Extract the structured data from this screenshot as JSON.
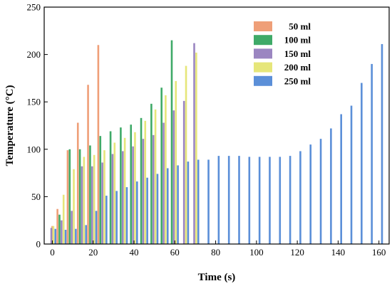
{
  "chart_data": {
    "type": "bar",
    "xlabel": "Time (s)",
    "ylabel": "Temperature (°C)",
    "xlim": [
      -4,
      165
    ],
    "ylim": [
      0,
      250
    ],
    "xticks": [
      0,
      20,
      40,
      60,
      80,
      100,
      120,
      140,
      160
    ],
    "yticks": [
      0,
      50,
      100,
      150,
      200,
      250
    ],
    "grid": false,
    "legend_position": "top-center",
    "series": [
      {
        "name": "50 ml",
        "color": "#ef9f78",
        "x": [
          0,
          2.5,
          7.5,
          12.5,
          17.5,
          22.5
        ],
        "values": [
          19,
          37,
          99,
          128,
          168,
          210
        ]
      },
      {
        "name": "100 ml",
        "color": "#3faa68",
        "x": [
          3.5,
          8.5,
          13.5,
          18.5,
          23.5,
          28.5,
          33.5,
          38.5,
          43.5,
          48.5,
          53.5,
          58.5
        ],
        "values": [
          31,
          100,
          100,
          104,
          114,
          119,
          123,
          126,
          133,
          148,
          165,
          215
        ]
      },
      {
        "name": "150 ml",
        "color": "#9b86c1",
        "x": [
          -0.5,
          4.5,
          9.5,
          14.5,
          19.5,
          24.5,
          29.5,
          34.5,
          39.5,
          44.5,
          49.5,
          54.5,
          59.5,
          64.5,
          69.5
        ],
        "values": [
          17,
          25,
          35,
          82,
          82,
          86,
          95,
          98,
          103,
          111,
          115,
          128,
          141,
          151,
          212
        ]
      },
      {
        "name": "200 ml",
        "color": "#e6e67a",
        "x": [
          0.5,
          5.5,
          10.5,
          15.5,
          20.5,
          25.5,
          30.5,
          35.5,
          40.5,
          45.5,
          50.5,
          55.5,
          60.5,
          65.5,
          70.5
        ],
        "values": [
          19,
          52,
          79,
          92,
          94,
          99,
          107,
          112,
          118,
          130,
          142,
          157,
          172,
          188,
          202
        ]
      },
      {
        "name": "250 ml",
        "color": "#5b8fd8",
        "x": [
          1.5,
          6.5,
          11.5,
          16.5,
          21.5,
          26.5,
          31.5,
          36.5,
          41.5,
          46.5,
          51.5,
          56.5,
          61.5,
          66.5,
          71.5,
          76.5,
          81.5,
          86.5,
          91.5,
          96.5,
          101.5,
          106.5,
          111.5,
          116.5,
          121.5,
          126.5,
          131.5,
          136.5,
          141.5,
          146.5,
          151.5,
          156.5,
          161.5
        ],
        "values": [
          16,
          15,
          16,
          20,
          35,
          51,
          56,
          60,
          66,
          70,
          74,
          80,
          83,
          87,
          89,
          89,
          93,
          93,
          93,
          92,
          92,
          92,
          92,
          93,
          98,
          105,
          111,
          122,
          137,
          146,
          170,
          190,
          211
        ]
      }
    ]
  }
}
